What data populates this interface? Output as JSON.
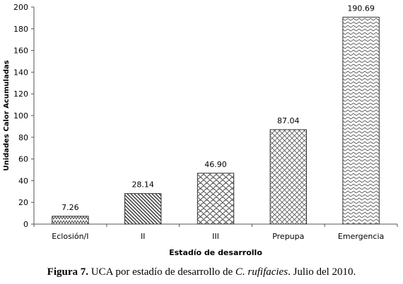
{
  "chart_data": {
    "type": "bar",
    "categories": [
      "Eclosión/I",
      "II",
      "III",
      "Prepupa",
      "Emergencia"
    ],
    "values": [
      7.26,
      28.14,
      46.9,
      87.04,
      190.69
    ],
    "value_labels": [
      "7.26",
      "28.14",
      "46.90",
      "87.04",
      "190.69"
    ],
    "xlabel": "Estadío de desarrollo",
    "ylabel": "Unidades Calor Acumuladas",
    "ylim": [
      0,
      200
    ],
    "yticks": [
      0,
      20,
      40,
      60,
      80,
      100,
      120,
      140,
      160,
      180,
      200
    ],
    "grid": false,
    "legend": "none",
    "bar_patterns": [
      "zigzag",
      "diagonal-lines",
      "scales",
      "crosshatch",
      "chevron"
    ]
  },
  "caption": {
    "label": "Figura 7.",
    "text_before": " UCA por estadío de desarrollo de ",
    "species": "C. rufifacies",
    "text_after": ". Julio del 2010."
  },
  "colors": {
    "bar_stroke": "#333333",
    "axis": "#555555",
    "text": "#000000",
    "background": "#ffffff"
  }
}
